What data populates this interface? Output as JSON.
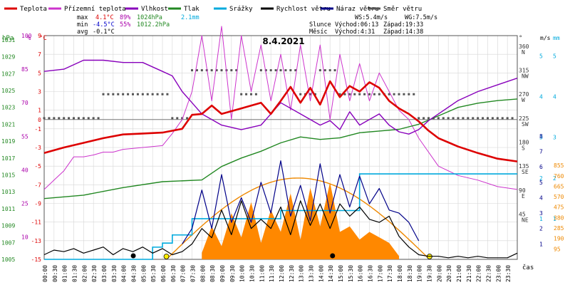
{
  "chart_data": {
    "type": "line",
    "title": "8.4.2021",
    "legend": [
      {
        "name": "Teplota",
        "color": "#dd0000"
      },
      {
        "name": "Přízemní teplota",
        "color": "#cc33cc"
      },
      {
        "name": "Vlhkost",
        "color": "#8800bb"
      },
      {
        "name": "Tlak",
        "color": "#228822"
      },
      {
        "name": "Srážky",
        "color": "#00aadd"
      },
      {
        "name": "Rychlost větru",
        "color": "#000000"
      },
      {
        "name": "Náraz větru",
        "color": "#000088"
      },
      {
        "name": "Směr větru",
        "color": "#555555"
      }
    ],
    "stats": {
      "max": {
        "label": "max",
        "temp": "4.1°C",
        "hum": "89%",
        "press": "1024hPa",
        "rain": "2.1mm"
      },
      "min": {
        "label": "min",
        "temp": "-4.5°C",
        "hum": "55%",
        "press": "1012.2hPa"
      },
      "avg": {
        "label": "avg",
        "temp": "-0.1°C"
      }
    },
    "wind_info": {
      "ws": "WS:5.4m/s",
      "wg": "WG:7.5m/s"
    },
    "sun": {
      "label": "Slunce",
      "rise": "Východ:06:13",
      "set": "Západ:19:33"
    },
    "moon": {
      "label": "Měsíc",
      "rise": "Východ:4:31",
      "set": "Západ:14:38"
    },
    "axes": {
      "hpa": {
        "unit": "hPa",
        "ticks": [
          "1031",
          "1029",
          "1027",
          "1025",
          "1023",
          "1021",
          "1019",
          "1017",
          "1015",
          "1013",
          "1011",
          "1009",
          "1007",
          "1005"
        ]
      },
      "pct": {
        "unit": "%",
        "ticks": [
          "100",
          "85",
          "70",
          "55",
          "40",
          "25",
          "10"
        ]
      },
      "temp": {
        "unit": "°C",
        "ticks": [
          "9",
          "7",
          "5",
          "3",
          "1",
          "0",
          "-1",
          "-3",
          "-5",
          "-7",
          "-9",
          "-11",
          "-13",
          "-15"
        ]
      },
      "dir": {
        "unit": "°",
        "ticks": [
          {
            "v": "360",
            "s": "N"
          },
          {
            "v": "315",
            "s": "NW"
          },
          {
            "v": "270",
            "s": "W"
          },
          {
            "v": "225",
            "s": "SW"
          },
          {
            "v": "180",
            "s": "S"
          },
          {
            "v": "135",
            "s": "SE"
          },
          {
            "v": "90",
            "s": "E"
          },
          {
            "v": "45",
            "s": "NE"
          }
        ]
      },
      "ms": {
        "unit": "m/s",
        "ticks": [
          "5",
          "4",
          "3",
          "2",
          "1"
        ],
        "ticks2": [
          "8",
          "7",
          "6",
          "5",
          "4",
          "3",
          "2",
          "1"
        ]
      },
      "mm": {
        "unit": "mm",
        "ticks": [
          "5",
          "4",
          "3",
          "2",
          "1"
        ]
      },
      "wm2": {
        "ticks": [
          "855",
          "760",
          "665",
          "570",
          "475",
          "380",
          "285",
          "190",
          "95"
        ]
      },
      "x_label": "čas",
      "x_ticks": [
        "00:00",
        "00:30",
        "01:00",
        "01:30",
        "02:00",
        "02:30",
        "03:00",
        "03:30",
        "04:00",
        "04:30",
        "05:00",
        "05:30",
        "06:00",
        "06:30",
        "07:00",
        "07:30",
        "08:00",
        "08:30",
        "09:00",
        "09:30",
        "10:00",
        "10:30",
        "11:00",
        "11:30",
        "12:00",
        "12:30",
        "13:00",
        "13:30",
        "14:00",
        "14:30",
        "15:00",
        "15:30",
        "16:00",
        "16:30",
        "17:00",
        "17:30",
        "18:00",
        "18:30",
        "19:00",
        "19:30",
        "20:00",
        "20:30",
        "21:00",
        "21:30",
        "22:00",
        "22:30",
        "23:00",
        "23:30"
      ]
    },
    "series": {
      "teplota": {
        "x": [
          0,
          1,
          2,
          3,
          4,
          5,
          6,
          7,
          7.5,
          8,
          8.5,
          9,
          10,
          11,
          11.5,
          12,
          12.5,
          13,
          13.5,
          14,
          14.5,
          15,
          15.5,
          16,
          16.5,
          17,
          17.5,
          18,
          18.5,
          19,
          19.5,
          20,
          21,
          22,
          23,
          24
        ],
        "y": [
          -3.6,
          -3.0,
          -2.5,
          -2.0,
          -1.6,
          -1.5,
          -1.4,
          -1.0,
          0.5,
          0.6,
          1.5,
          0.6,
          1.2,
          1.8,
          0.6,
          2.0,
          3.5,
          1.8,
          3.4,
          1.6,
          4.1,
          2.4,
          3.6,
          3.0,
          4.0,
          3.4,
          2.0,
          1.2,
          0.6,
          -0.2,
          -1.2,
          -2.0,
          -2.9,
          -3.6,
          -4.2,
          -4.5
        ]
      },
      "vlhkost": {
        "x": [
          0,
          1,
          2,
          3,
          4,
          5,
          6,
          6.5,
          7,
          7.5,
          8,
          9,
          10,
          11,
          12,
          13,
          14,
          14.5,
          15,
          15.5,
          16,
          17,
          17.5,
          18,
          18.5,
          19,
          19.5,
          20,
          21,
          22,
          23,
          24
        ],
        "y": [
          84,
          85,
          89,
          89,
          88,
          88,
          84,
          82,
          75,
          70,
          65,
          60,
          58,
          60,
          70,
          65,
          60,
          62,
          58,
          66,
          60,
          65,
          60,
          57,
          56,
          58,
          62,
          65,
          71,
          75,
          78,
          81
        ]
      },
      "tlak": {
        "x": [
          0,
          2,
          4,
          6,
          8,
          9,
          10,
          11,
          12,
          13,
          14,
          15,
          16,
          17,
          18,
          19,
          20,
          21,
          22,
          23,
          24
        ],
        "y": [
          1012.2,
          1012.6,
          1013.5,
          1014.2,
          1014.4,
          1016.0,
          1017.0,
          1017.8,
          1018.8,
          1019.5,
          1019.2,
          1019.4,
          1020.0,
          1020.2,
          1020.4,
          1021.0,
          1022.0,
          1023.0,
          1023.5,
          1023.8,
          1024.0
        ]
      },
      "prizemni": {
        "x": [
          0,
          0.5,
          1,
          1.5,
          2,
          2.5,
          3,
          3.5,
          4,
          5,
          6,
          6.5,
          7,
          7.5,
          8,
          8.5,
          9,
          9.5,
          10,
          10.5,
          11,
          11.5,
          12,
          12.5,
          13,
          13.5,
          14,
          14.5,
          15,
          15.5,
          16,
          16.5,
          17,
          17.5,
          18,
          18.5,
          19,
          20,
          21,
          22,
          23,
          24
        ],
        "y": [
          -7.5,
          -6.5,
          -5.5,
          -4.0,
          -4.0,
          -3.8,
          -3.5,
          -3.5,
          -3.2,
          -3.0,
          -2.8,
          -1.5,
          0,
          3,
          9,
          2,
          10,
          0,
          9,
          3,
          8,
          2,
          7,
          1,
          8,
          2,
          8,
          0,
          7,
          2,
          6,
          2,
          5,
          3,
          1,
          0,
          -2,
          -5,
          -6,
          -6.5,
          -7.2,
          -7.5
        ]
      },
      "srazky_mm": {
        "x": [
          0,
          5,
          5.5,
          6,
          6.5,
          7,
          7.5,
          8,
          12,
          15.5,
          16,
          24
        ],
        "y": [
          0,
          0,
          0.3,
          0.4,
          0.6,
          0.6,
          1.0,
          1.0,
          1.2,
          1.2,
          2.1,
          2.1
        ]
      },
      "rychlost": {
        "x": [
          0,
          0.5,
          1,
          1.5,
          2,
          2.5,
          3,
          3.5,
          4,
          4.5,
          5,
          5.5,
          6,
          6.5,
          7,
          7.5,
          8,
          8.5,
          9,
          9.5,
          10,
          10.5,
          11,
          11.5,
          12,
          12.5,
          13,
          13.5,
          14,
          14.5,
          15,
          15.5,
          16,
          16.5,
          17,
          17.5,
          18,
          18.5,
          19,
          19.5,
          20,
          20.5,
          21,
          21.5,
          22,
          22.5,
          23,
          23.5,
          24
        ],
        "y": [
          0.3,
          0.6,
          0.5,
          0.7,
          0.4,
          0.6,
          0.8,
          0.3,
          0.7,
          0.5,
          0.8,
          0.4,
          0.7,
          0.3,
          0.5,
          1.0,
          2.0,
          1.4,
          3.2,
          1.6,
          3.8,
          2.0,
          2.6,
          2.0,
          3.4,
          1.6,
          3.8,
          2.2,
          3.6,
          2.0,
          3.6,
          2.8,
          3.4,
          2.6,
          2.4,
          2.8,
          1.5,
          0.8,
          0.3,
          0.2,
          0.2,
          0.1,
          0.2,
          0.1,
          0.2,
          0.1,
          0.1,
          0.1,
          0.4
        ]
      },
      "naraz": {
        "x": [
          7,
          7.5,
          8,
          8.5,
          9,
          9.5,
          10,
          10.5,
          11,
          11.5,
          12,
          12.5,
          13,
          13.5,
          14,
          14.5,
          15,
          15.5,
          16,
          16.5,
          17,
          17.5,
          18,
          18.5,
          19
        ],
        "y": [
          1.0,
          2.0,
          4.5,
          2.0,
          5.5,
          2.4,
          4.0,
          2.4,
          5.0,
          3.0,
          6.4,
          2.8,
          4.8,
          2.5,
          6.2,
          3.0,
          5.5,
          3.4,
          5.4,
          3.6,
          4.6,
          3.2,
          3.0,
          2.4,
          1.2
        ]
      },
      "smer_deg": {
        "x": [
          0,
          1,
          2,
          3,
          4,
          5,
          6,
          6.5,
          7,
          7.5,
          8,
          9,
          10,
          11,
          12,
          13,
          14,
          15,
          16,
          17,
          18,
          19,
          20,
          21,
          22,
          23,
          24
        ],
        "y": [
          225,
          225,
          225,
          270,
          270,
          270,
          270,
          225,
          225,
          315,
          315,
          315,
          270,
          315,
          315,
          270,
          315,
          270,
          270,
          270,
          270,
          225,
          225,
          225,
          225,
          225,
          225
        ]
      },
      "slunce_wm2": {
        "peak": 740,
        "rise_h": 6.2,
        "set_h": 19.55
      },
      "zareni_wm2": {
        "x": [
          8,
          8.5,
          9,
          9.5,
          10,
          10.5,
          11,
          11.5,
          12,
          12.5,
          13,
          13.5,
          14,
          14.5,
          15,
          15.5,
          16,
          16.5,
          17,
          17.5,
          18
        ],
        "y": [
          60,
          300,
          120,
          420,
          200,
          520,
          150,
          450,
          250,
          600,
          180,
          650,
          300,
          700,
          250,
          300,
          180,
          250,
          200,
          150,
          30
        ]
      }
    }
  }
}
